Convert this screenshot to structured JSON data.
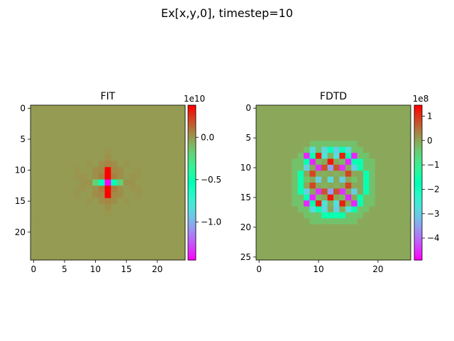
{
  "figure": {
    "suptitle": "Ex[x,y,0], timestep=10"
  },
  "colormap": "rainbow",
  "chart_data": [
    {
      "type": "heatmap",
      "title": "FIT",
      "xlabel": "",
      "ylabel": "",
      "grid_size": [
        25,
        25
      ],
      "xticks": [
        0,
        5,
        10,
        15,
        20
      ],
      "yticks": [
        0,
        5,
        10,
        15,
        20
      ],
      "colorbar": {
        "exponent_label": "1e10",
        "vmin": -1.45,
        "vmax": 0.38,
        "ticks": [
          -1.0,
          -0.5,
          0.0
        ],
        "tick_labels": [
          "−1.0",
          "−0.5",
          "0.0"
        ]
      },
      "background_value": 0.0,
      "cells": [
        [
          12,
          10,
          0.38
        ],
        [
          12,
          11,
          0.38
        ],
        [
          12,
          13,
          0.38
        ],
        [
          12,
          14,
          0.38
        ],
        [
          12,
          12,
          -1.45
        ],
        [
          11,
          12,
          -0.55
        ],
        [
          13,
          12,
          -0.55
        ],
        [
          10,
          12,
          -0.18
        ],
        [
          14,
          12,
          -0.18
        ],
        [
          11,
          11,
          0.08
        ],
        [
          13,
          11,
          0.08
        ],
        [
          11,
          13,
          0.08
        ],
        [
          13,
          13,
          0.08
        ],
        [
          12,
          9,
          0.06
        ],
        [
          12,
          15,
          0.06
        ],
        [
          11,
          10,
          0.05
        ],
        [
          13,
          10,
          0.05
        ],
        [
          11,
          14,
          0.05
        ],
        [
          13,
          14,
          0.05
        ],
        [
          11,
          9,
          0.035
        ],
        [
          13,
          9,
          0.035
        ],
        [
          11,
          15,
          0.035
        ],
        [
          13,
          15,
          0.035
        ],
        [
          10,
          10,
          0.035
        ],
        [
          14,
          10,
          0.035
        ],
        [
          10,
          14,
          0.035
        ],
        [
          14,
          14,
          0.035
        ],
        [
          12,
          8,
          0.03
        ],
        [
          12,
          16,
          0.03
        ],
        [
          10,
          11,
          0.03
        ],
        [
          14,
          11,
          0.03
        ],
        [
          10,
          13,
          0.03
        ],
        [
          14,
          13,
          0.03
        ],
        [
          9,
          12,
          0.025
        ],
        [
          15,
          12,
          0.025
        ],
        [
          8,
          11,
          0.02
        ],
        [
          8,
          12,
          0.02
        ],
        [
          8,
          13,
          0.02
        ],
        [
          16,
          11,
          0.02
        ],
        [
          16,
          12,
          0.02
        ],
        [
          16,
          13,
          0.02
        ],
        [
          17,
          10,
          0.015
        ],
        [
          17,
          11,
          0.015
        ],
        [
          17,
          13,
          0.015
        ],
        [
          17,
          14,
          0.015
        ],
        [
          7,
          10,
          0.015
        ],
        [
          7,
          11,
          0.015
        ],
        [
          7,
          13,
          0.015
        ],
        [
          7,
          14,
          0.015
        ],
        [
          9,
          9,
          0.015
        ],
        [
          15,
          9,
          0.015
        ],
        [
          9,
          15,
          0.015
        ],
        [
          15,
          15,
          0.015
        ],
        [
          12,
          7,
          0.015
        ],
        [
          12,
          17,
          0.015
        ]
      ]
    },
    {
      "type": "heatmap",
      "title": "FDTD",
      "xlabel": "",
      "ylabel": "",
      "grid_size": [
        26,
        26
      ],
      "xticks": [
        0,
        10,
        20
      ],
      "yticks": [
        0,
        5,
        10,
        15,
        20,
        25
      ],
      "colorbar": {
        "exponent_label": "1e8",
        "vmin": -4.9,
        "vmax": 1.45,
        "ticks": [
          -4,
          -3,
          -2,
          -1,
          0,
          1
        ],
        "tick_labels": [
          "−4",
          "−3",
          "−2",
          "−1",
          "0",
          "1"
        ]
      },
      "background_value": 0.0,
      "pattern": {
        "center": [
          12.5,
          12.5
        ],
        "radius": 7.4,
        "rings": [
          {
            "r_min": 6.0,
            "r_max": 7.4,
            "value": -0.3
          },
          {
            "r_min": 4.8,
            "r_max": 6.0,
            "value": -1.6
          }
        ]
      },
      "cells": [
        [
          9,
          7,
          -2.8
        ],
        [
          11,
          7,
          -2.9
        ],
        [
          13,
          7,
          -3.0
        ],
        [
          15,
          7,
          -2.8
        ],
        [
          8,
          8,
          -4.6
        ],
        [
          10,
          8,
          1.2
        ],
        [
          11,
          8,
          -2.7
        ],
        [
          12,
          8,
          -0.1
        ],
        [
          13,
          8,
          -2.7
        ],
        [
          14,
          8,
          1.2
        ],
        [
          16,
          8,
          -4.6
        ],
        [
          9,
          9,
          -4.6
        ],
        [
          10,
          9,
          -0.2
        ],
        [
          12,
          9,
          1.3
        ],
        [
          14,
          9,
          -0.2
        ],
        [
          15,
          9,
          -4.6
        ],
        [
          8,
          10,
          -3.0
        ],
        [
          10,
          10,
          -4.5
        ],
        [
          11,
          10,
          0.8
        ],
        [
          12,
          10,
          -3.5
        ],
        [
          13,
          10,
          0.8
        ],
        [
          14,
          10,
          -4.5
        ],
        [
          16,
          10,
          -3.0
        ],
        [
          9,
          11,
          0.9
        ],
        [
          11,
          11,
          -0.1
        ],
        [
          13,
          11,
          -0.1
        ],
        [
          15,
          11,
          0.9
        ],
        [
          8,
          12,
          -0.3
        ],
        [
          10,
          12,
          -3.0
        ],
        [
          12,
          12,
          -2.8
        ],
        [
          14,
          12,
          -3.0
        ],
        [
          16,
          12,
          -0.3
        ],
        [
          9,
          13,
          0.9
        ],
        [
          11,
          13,
          -0.1
        ],
        [
          13,
          13,
          -0.1
        ],
        [
          15,
          13,
          0.9
        ],
        [
          8,
          14,
          -3.0
        ],
        [
          10,
          14,
          -4.5
        ],
        [
          11,
          14,
          0.8
        ],
        [
          12,
          14,
          -3.5
        ],
        [
          13,
          14,
          0.8
        ],
        [
          14,
          14,
          -4.5
        ],
        [
          16,
          14,
          -3.0
        ],
        [
          9,
          15,
          -4.6
        ],
        [
          10,
          15,
          -0.2
        ],
        [
          12,
          15,
          1.3
        ],
        [
          14,
          15,
          -0.2
        ],
        [
          15,
          15,
          -4.6
        ],
        [
          8,
          16,
          -4.6
        ],
        [
          10,
          16,
          1.2
        ],
        [
          11,
          16,
          -2.7
        ],
        [
          12,
          16,
          -0.1
        ],
        [
          13,
          16,
          -2.7
        ],
        [
          14,
          16,
          1.2
        ],
        [
          16,
          16,
          -4.6
        ],
        [
          9,
          17,
          -2.8
        ],
        [
          11,
          17,
          -2.9
        ],
        [
          13,
          17,
          -3.0
        ],
        [
          15,
          17,
          -2.8
        ]
      ]
    }
  ]
}
